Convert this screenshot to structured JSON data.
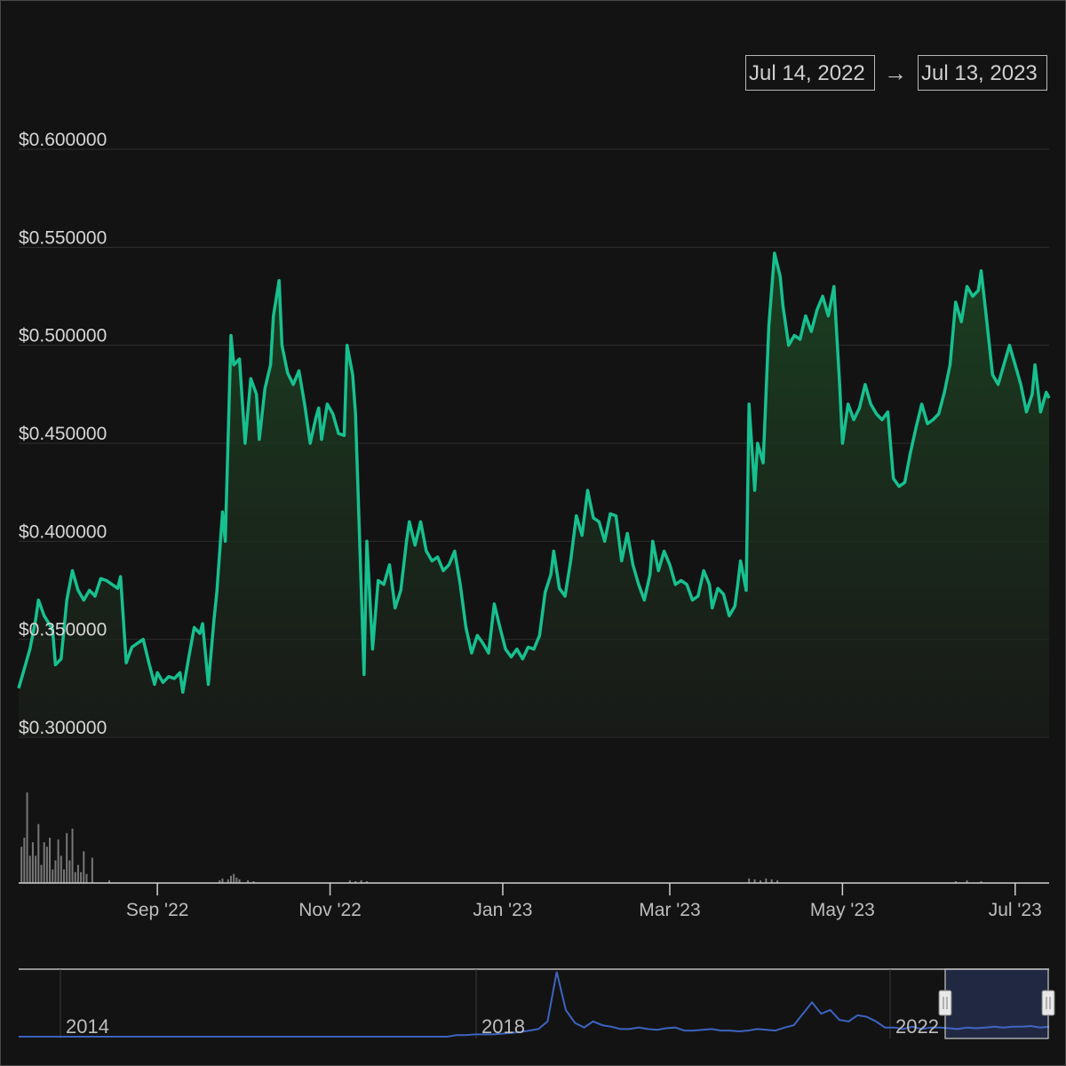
{
  "range": {
    "from": "Jul 14, 2022",
    "arrow": "→",
    "to": "Jul 13, 2023"
  },
  "colors": {
    "background": "#131313",
    "price_line": "#17c08f",
    "area_top": "#143a22",
    "grid": "#2f2f2f",
    "navigator_line": "#3c64c0",
    "volume": "#777777"
  },
  "chart_data": {
    "type": "area",
    "title": "",
    "xlabel": "",
    "ylabel": "",
    "x_start": "2022-07-14",
    "x_end": "2023-07-13",
    "ylim": [
      0.28,
      0.615
    ],
    "y_ticks": [
      0.3,
      0.35,
      0.4,
      0.45,
      0.5,
      0.55,
      0.6
    ],
    "y_tick_labels": [
      "$0.300000",
      "$0.350000",
      "$0.400000",
      "$0.450000",
      "$0.500000",
      "$0.550000",
      "$0.600000"
    ],
    "x_ticks": [
      {
        "date": "2022-09-01",
        "label": "Sep '22"
      },
      {
        "date": "2022-11-01",
        "label": "Nov '22"
      },
      {
        "date": "2023-01-01",
        "label": "Jan '23"
      },
      {
        "date": "2023-03-01",
        "label": "Mar '23"
      },
      {
        "date": "2023-05-01",
        "label": "May '23"
      },
      {
        "date": "2023-07-01",
        "label": "Jul '23"
      }
    ],
    "grid": true,
    "series": [
      {
        "points": [
          [
            "2022-07-14",
            0.325
          ],
          [
            "2022-07-16",
            0.335
          ],
          [
            "2022-07-18",
            0.345
          ],
          [
            "2022-07-20",
            0.36
          ],
          [
            "2022-07-21",
            0.37
          ],
          [
            "2022-07-23",
            0.362
          ],
          [
            "2022-07-26",
            0.355
          ],
          [
            "2022-07-27",
            0.337
          ],
          [
            "2022-07-29",
            0.34
          ],
          [
            "2022-07-31",
            0.37
          ],
          [
            "2022-08-02",
            0.385
          ],
          [
            "2022-08-04",
            0.375
          ],
          [
            "2022-08-06",
            0.37
          ],
          [
            "2022-08-08",
            0.375
          ],
          [
            "2022-08-10",
            0.372
          ],
          [
            "2022-08-12",
            0.381
          ],
          [
            "2022-08-14",
            0.38
          ],
          [
            "2022-08-16",
            0.378
          ],
          [
            "2022-08-18",
            0.376
          ],
          [
            "2022-08-19",
            0.382
          ],
          [
            "2022-08-21",
            0.338
          ],
          [
            "2022-08-23",
            0.346
          ],
          [
            "2022-08-25",
            0.348
          ],
          [
            "2022-08-27",
            0.35
          ],
          [
            "2022-08-29",
            0.338
          ],
          [
            "2022-08-31",
            0.327
          ],
          [
            "2022-09-01",
            0.333
          ],
          [
            "2022-09-03",
            0.328
          ],
          [
            "2022-09-05",
            0.331
          ],
          [
            "2022-09-07",
            0.33
          ],
          [
            "2022-09-09",
            0.333
          ],
          [
            "2022-09-10",
            0.323
          ],
          [
            "2022-09-12",
            0.34
          ],
          [
            "2022-09-14",
            0.356
          ],
          [
            "2022-09-16",
            0.353
          ],
          [
            "2022-09-17",
            0.358
          ],
          [
            "2022-09-19",
            0.327
          ],
          [
            "2022-09-21",
            0.36
          ],
          [
            "2022-09-22",
            0.374
          ],
          [
            "2022-09-24",
            0.415
          ],
          [
            "2022-09-25",
            0.4
          ],
          [
            "2022-09-27",
            0.505
          ],
          [
            "2022-09-28",
            0.49
          ],
          [
            "2022-09-30",
            0.493
          ],
          [
            "2022-10-02",
            0.45
          ],
          [
            "2022-10-04",
            0.483
          ],
          [
            "2022-10-06",
            0.475
          ],
          [
            "2022-10-07",
            0.452
          ],
          [
            "2022-10-09",
            0.478
          ],
          [
            "2022-10-11",
            0.49
          ],
          [
            "2022-10-12",
            0.515
          ],
          [
            "2022-10-14",
            0.533
          ],
          [
            "2022-10-15",
            0.5
          ],
          [
            "2022-10-17",
            0.486
          ],
          [
            "2022-10-19",
            0.48
          ],
          [
            "2022-10-21",
            0.487
          ],
          [
            "2022-10-23",
            0.47
          ],
          [
            "2022-10-25",
            0.45
          ],
          [
            "2022-10-27",
            0.463
          ],
          [
            "2022-10-28",
            0.468
          ],
          [
            "2022-10-29",
            0.452
          ],
          [
            "2022-10-31",
            0.47
          ],
          [
            "2022-11-02",
            0.465
          ],
          [
            "2022-11-04",
            0.455
          ],
          [
            "2022-11-06",
            0.454
          ],
          [
            "2022-11-07",
            0.5
          ],
          [
            "2022-11-09",
            0.485
          ],
          [
            "2022-11-10",
            0.465
          ],
          [
            "2022-11-13",
            0.332
          ],
          [
            "2022-11-14",
            0.4
          ],
          [
            "2022-11-16",
            0.345
          ],
          [
            "2022-11-18",
            0.38
          ],
          [
            "2022-11-20",
            0.378
          ],
          [
            "2022-11-22",
            0.388
          ],
          [
            "2022-11-24",
            0.366
          ],
          [
            "2022-11-26",
            0.375
          ],
          [
            "2022-11-28",
            0.4
          ],
          [
            "2022-11-29",
            0.41
          ],
          [
            "2022-12-01",
            0.398
          ],
          [
            "2022-12-03",
            0.41
          ],
          [
            "2022-12-05",
            0.395
          ],
          [
            "2022-12-07",
            0.39
          ],
          [
            "2022-12-09",
            0.392
          ],
          [
            "2022-12-11",
            0.385
          ],
          [
            "2022-12-13",
            0.388
          ],
          [
            "2022-12-15",
            0.395
          ],
          [
            "2022-12-17",
            0.378
          ],
          [
            "2022-12-19",
            0.356
          ],
          [
            "2022-12-21",
            0.343
          ],
          [
            "2022-12-23",
            0.352
          ],
          [
            "2022-12-25",
            0.348
          ],
          [
            "2022-12-27",
            0.343
          ],
          [
            "2022-12-29",
            0.368
          ],
          [
            "2022-12-31",
            0.356
          ],
          [
            "2023-01-02",
            0.345
          ],
          [
            "2023-01-04",
            0.341
          ],
          [
            "2023-01-06",
            0.345
          ],
          [
            "2023-01-08",
            0.34
          ],
          [
            "2023-01-10",
            0.346
          ],
          [
            "2023-01-12",
            0.345
          ],
          [
            "2023-01-14",
            0.352
          ],
          [
            "2023-01-16",
            0.374
          ],
          [
            "2023-01-18",
            0.383
          ],
          [
            "2023-01-19",
            0.395
          ],
          [
            "2023-01-21",
            0.376
          ],
          [
            "2023-01-23",
            0.372
          ],
          [
            "2023-01-25",
            0.39
          ],
          [
            "2023-01-27",
            0.413
          ],
          [
            "2023-01-29",
            0.403
          ],
          [
            "2023-01-31",
            0.426
          ],
          [
            "2023-02-02",
            0.412
          ],
          [
            "2023-02-04",
            0.41
          ],
          [
            "2023-02-06",
            0.4
          ],
          [
            "2023-02-08",
            0.414
          ],
          [
            "2023-02-10",
            0.413
          ],
          [
            "2023-02-12",
            0.39
          ],
          [
            "2023-02-14",
            0.404
          ],
          [
            "2023-02-16",
            0.388
          ],
          [
            "2023-02-18",
            0.378
          ],
          [
            "2023-02-20",
            0.37
          ],
          [
            "2023-02-22",
            0.383
          ],
          [
            "2023-02-23",
            0.4
          ],
          [
            "2023-02-25",
            0.385
          ],
          [
            "2023-02-27",
            0.395
          ],
          [
            "2023-03-01",
            0.388
          ],
          [
            "2023-03-03",
            0.378
          ],
          [
            "2023-03-05",
            0.38
          ],
          [
            "2023-03-07",
            0.378
          ],
          [
            "2023-03-09",
            0.37
          ],
          [
            "2023-03-11",
            0.372
          ],
          [
            "2023-03-13",
            0.385
          ],
          [
            "2023-03-15",
            0.378
          ],
          [
            "2023-03-16",
            0.366
          ],
          [
            "2023-03-18",
            0.376
          ],
          [
            "2023-03-20",
            0.373
          ],
          [
            "2023-03-22",
            0.362
          ],
          [
            "2023-03-24",
            0.367
          ],
          [
            "2023-03-25",
            0.378
          ],
          [
            "2023-03-26",
            0.39
          ],
          [
            "2023-03-28",
            0.375
          ],
          [
            "2023-03-29",
            0.47
          ],
          [
            "2023-03-31",
            0.426
          ],
          [
            "2023-04-01",
            0.45
          ],
          [
            "2023-04-03",
            0.44
          ],
          [
            "2023-04-05",
            0.51
          ],
          [
            "2023-04-07",
            0.547
          ],
          [
            "2023-04-09",
            0.535
          ],
          [
            "2023-04-10",
            0.52
          ],
          [
            "2023-04-12",
            0.5
          ],
          [
            "2023-04-14",
            0.505
          ],
          [
            "2023-04-16",
            0.503
          ],
          [
            "2023-04-18",
            0.515
          ],
          [
            "2023-04-20",
            0.507
          ],
          [
            "2023-04-22",
            0.518
          ],
          [
            "2023-04-24",
            0.525
          ],
          [
            "2023-04-26",
            0.515
          ],
          [
            "2023-04-28",
            0.53
          ],
          [
            "2023-04-30",
            0.48
          ],
          [
            "2023-05-01",
            0.45
          ],
          [
            "2023-05-03",
            0.47
          ],
          [
            "2023-05-05",
            0.462
          ],
          [
            "2023-05-07",
            0.468
          ],
          [
            "2023-05-09",
            0.48
          ],
          [
            "2023-05-11",
            0.47
          ],
          [
            "2023-05-13",
            0.465
          ],
          [
            "2023-05-15",
            0.462
          ],
          [
            "2023-05-17",
            0.466
          ],
          [
            "2023-05-19",
            0.432
          ],
          [
            "2023-05-21",
            0.428
          ],
          [
            "2023-05-23",
            0.43
          ],
          [
            "2023-05-25",
            0.445
          ],
          [
            "2023-05-27",
            0.458
          ],
          [
            "2023-05-29",
            0.47
          ],
          [
            "2023-05-31",
            0.46
          ],
          [
            "2023-06-02",
            0.462
          ],
          [
            "2023-06-04",
            0.465
          ],
          [
            "2023-06-06",
            0.476
          ],
          [
            "2023-06-08",
            0.49
          ],
          [
            "2023-06-10",
            0.522
          ],
          [
            "2023-06-12",
            0.512
          ],
          [
            "2023-06-14",
            0.53
          ],
          [
            "2023-06-16",
            0.525
          ],
          [
            "2023-06-18",
            0.528
          ],
          [
            "2023-06-19",
            0.538
          ],
          [
            "2023-06-21",
            0.512
          ],
          [
            "2023-06-23",
            0.485
          ],
          [
            "2023-06-25",
            0.48
          ],
          [
            "2023-06-27",
            0.49
          ],
          [
            "2023-06-29",
            0.5
          ],
          [
            "2023-07-01",
            0.49
          ],
          [
            "2023-07-03",
            0.48
          ],
          [
            "2023-07-05",
            0.466
          ],
          [
            "2023-07-07",
            0.475
          ],
          [
            "2023-07-08",
            0.49
          ],
          [
            "2023-07-10",
            0.466
          ],
          [
            "2023-07-12",
            0.476
          ],
          [
            "2023-07-13",
            0.473
          ]
        ]
      }
    ],
    "volume": [
      [
        "2022-07-15",
        0.4
      ],
      [
        "2022-07-16",
        0.5
      ],
      [
        "2022-07-17",
        1.0
      ],
      [
        "2022-07-18",
        0.3
      ],
      [
        "2022-07-19",
        0.45
      ],
      [
        "2022-07-20",
        0.3
      ],
      [
        "2022-07-21",
        0.65
      ],
      [
        "2022-07-22",
        0.2
      ],
      [
        "2022-07-23",
        0.45
      ],
      [
        "2022-07-24",
        0.4
      ],
      [
        "2022-07-25",
        0.5
      ],
      [
        "2022-07-26",
        0.15
      ],
      [
        "2022-07-27",
        0.25
      ],
      [
        "2022-07-28",
        0.48
      ],
      [
        "2022-07-29",
        0.3
      ],
      [
        "2022-07-30",
        0.15
      ],
      [
        "2022-07-31",
        0.55
      ],
      [
        "2022-08-01",
        0.25
      ],
      [
        "2022-08-02",
        0.6
      ],
      [
        "2022-08-03",
        0.12
      ],
      [
        "2022-08-04",
        0.2
      ],
      [
        "2022-08-05",
        0.12
      ],
      [
        "2022-08-06",
        0.35
      ],
      [
        "2022-08-07",
        0.1
      ],
      [
        "2022-08-09",
        0.28
      ],
      [
        "2022-08-15",
        0.03
      ],
      [
        "2022-09-23",
        0.03
      ],
      [
        "2022-09-24",
        0.05
      ],
      [
        "2022-09-26",
        0.04
      ],
      [
        "2022-09-27",
        0.08
      ],
      [
        "2022-09-28",
        0.1
      ],
      [
        "2022-09-29",
        0.06
      ],
      [
        "2022-09-30",
        0.04
      ],
      [
        "2022-10-03",
        0.03
      ],
      [
        "2022-10-05",
        0.02
      ],
      [
        "2022-11-08",
        0.03
      ],
      [
        "2022-11-10",
        0.02
      ],
      [
        "2022-11-12",
        0.03
      ],
      [
        "2022-11-14",
        0.02
      ],
      [
        "2023-03-29",
        0.05
      ],
      [
        "2023-03-31",
        0.04
      ],
      [
        "2023-04-02",
        0.03
      ],
      [
        "2023-04-04",
        0.05
      ],
      [
        "2023-04-06",
        0.04
      ],
      [
        "2023-04-08",
        0.03
      ],
      [
        "2023-06-10",
        0.02
      ],
      [
        "2023-06-14",
        0.03
      ],
      [
        "2023-06-19",
        0.02
      ]
    ],
    "navigator": {
      "x_labels": [
        "2014",
        "2018",
        "2022"
      ],
      "series": [
        0,
        0,
        0,
        0,
        0,
        0,
        0,
        0,
        0,
        0,
        0,
        0,
        0,
        0,
        0,
        0,
        0,
        0,
        0,
        0,
        0,
        0,
        0,
        0,
        0,
        0,
        0,
        0,
        0,
        0,
        0,
        0,
        0,
        0,
        0,
        0,
        0,
        0,
        0,
        0,
        0,
        0,
        0,
        0,
        0,
        0,
        0,
        0,
        0.02,
        0.02,
        0.03,
        0.03,
        0.03,
        0.04,
        0.05,
        0.06,
        0.08,
        0.1,
        0.2,
        0.85,
        0.35,
        0.18,
        0.12,
        0.2,
        0.15,
        0.13,
        0.1,
        0.1,
        0.12,
        0.1,
        0.09,
        0.11,
        0.12,
        0.08,
        0.08,
        0.09,
        0.1,
        0.08,
        0.08,
        0.07,
        0.08,
        0.1,
        0.09,
        0.08,
        0.12,
        0.15,
        0.3,
        0.45,
        0.3,
        0.35,
        0.22,
        0.2,
        0.28,
        0.26,
        0.2,
        0.12,
        0.12,
        0.1,
        0.13,
        0.1,
        0.12,
        0.12,
        0.11,
        0.1,
        0.12,
        0.11,
        0.12,
        0.13,
        0.12,
        0.13,
        0.13,
        0.14,
        0.12,
        0.13
      ]
    }
  }
}
